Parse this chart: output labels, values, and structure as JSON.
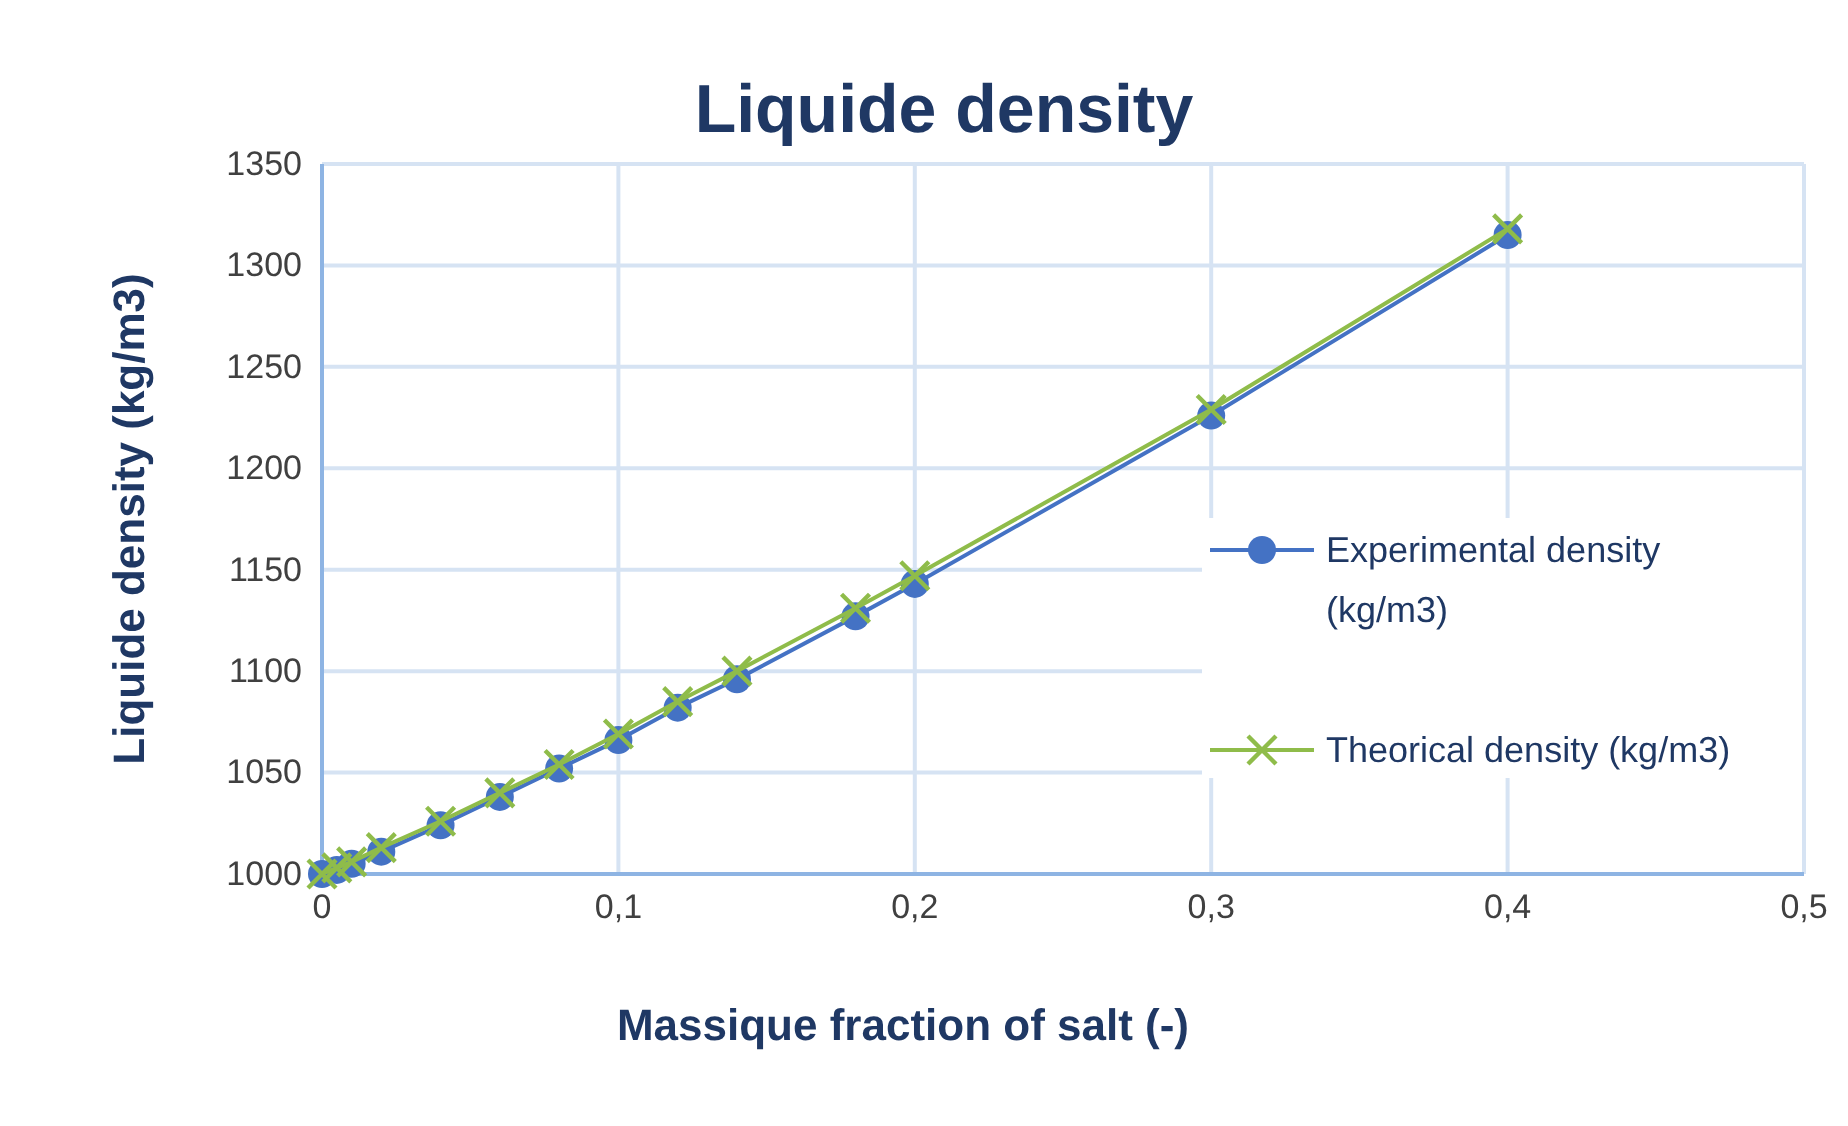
{
  "chart_data": {
    "type": "line",
    "title": "Liquide density",
    "xlabel": "Massique fraction of salt (-)",
    "ylabel": "Liquide density (kg/m3)",
    "x": [
      0,
      0.005,
      0.01,
      0.02,
      0.04,
      0.06,
      0.08,
      0.1,
      0.12,
      0.14,
      0.18,
      0.2,
      0.3,
      0.4
    ],
    "series": [
      {
        "name": "Experimental density (kg/m3)",
        "color": "#4472c4",
        "marker": "circle",
        "values": [
          1000,
          1002,
          1005,
          1011,
          1024,
          1038,
          1052,
          1066,
          1082,
          1096,
          1127,
          1143,
          1226,
          1315
        ]
      },
      {
        "name": "Theorical density (kg/m3)",
        "color": "#8fbc4a",
        "marker": "cross",
        "values": [
          1000,
          1003,
          1006,
          1013,
          1026,
          1040,
          1054,
          1069,
          1085,
          1100,
          1131,
          1147,
          1229,
          1318
        ]
      }
    ],
    "xlim": [
      0,
      0.5
    ],
    "xticks": [
      0,
      {
        "value": 0.1,
        "label": "0,1"
      },
      {
        "value": 0.2,
        "label": "0,2"
      },
      {
        "value": 0.3,
        "label": "0,3"
      },
      {
        "value": 0.4,
        "label": "0,4"
      },
      {
        "value": 0.5,
        "label": "0,5"
      }
    ],
    "ylim": [
      1000,
      1350
    ],
    "yticks": [
      1000,
      1050,
      1100,
      1150,
      1200,
      1250,
      1300,
      1350
    ],
    "grid": true,
    "legend": "right",
    "line_style": "solid"
  }
}
